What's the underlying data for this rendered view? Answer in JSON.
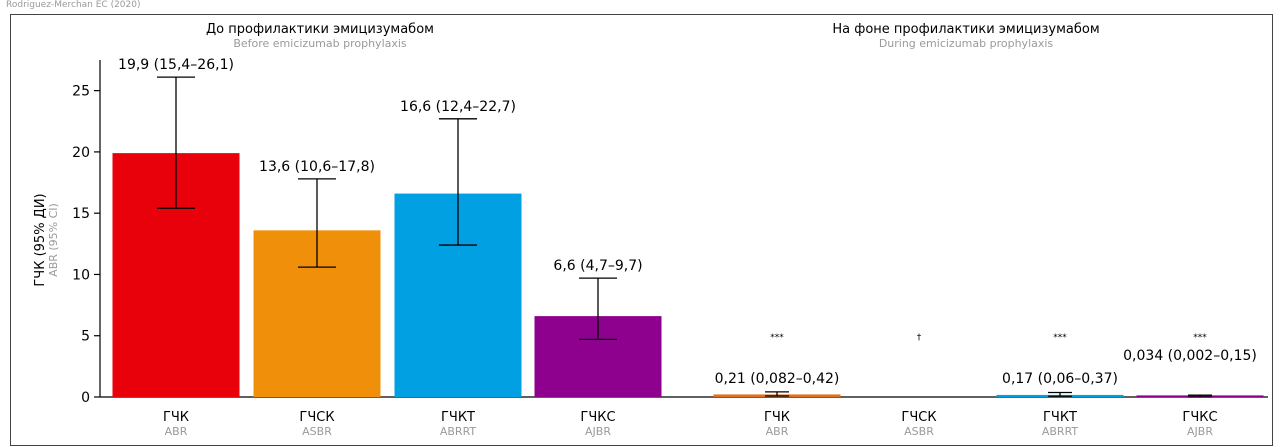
{
  "caption": "Rodriguez-Merchan EC (2020)",
  "chart_data": {
    "type": "bar",
    "ylabel": "ГЧК (95% ДИ)",
    "ylabel_en": "ABR (95% CI)",
    "ylim": [
      0,
      27.5
    ],
    "yticks": [
      0,
      5,
      10,
      15,
      20,
      25
    ],
    "grid": false,
    "panels": [
      {
        "title": "До профилактики эмицизумабом",
        "subtitle": "Before emicizumab prophylaxis",
        "bars": [
          {
            "category": "ГЧК",
            "category_en": "ABR",
            "value": 19.9,
            "ci": [
              15.4,
              26.1
            ],
            "label": "19,9 (15,4–26,1)",
            "color": "#e8000b",
            "sig": ""
          },
          {
            "category": "ГЧСК",
            "category_en": "ASBR",
            "value": 13.6,
            "ci": [
              10.6,
              17.8
            ],
            "label": "13,6 (10,6–17,8)",
            "color": "#f0900a",
            "sig": ""
          },
          {
            "category": "ГЧКТ",
            "category_en": "ABRRT",
            "value": 16.6,
            "ci": [
              12.4,
              22.7
            ],
            "label": "16,6 (12,4–22,7)",
            "color": "#00a0e3",
            "sig": ""
          },
          {
            "category": "ГЧКС",
            "category_en": "AJBR",
            "value": 6.6,
            "ci": [
              4.7,
              9.7
            ],
            "label": "6,6 (4,7–9,7)",
            "color": "#8e008e",
            "sig": ""
          }
        ]
      },
      {
        "title": "На фоне профилактики эмицизумабом",
        "subtitle": "During emicizumab prophylaxis",
        "bars": [
          {
            "category": "ГЧК",
            "category_en": "ABR",
            "value": 0.21,
            "ci": [
              0.082,
              0.42
            ],
            "label": "0,21 (0,082–0,42)",
            "color": "#e07020",
            "sig": "***"
          },
          {
            "category": "ГЧСК",
            "category_en": "ASBR",
            "value": 0,
            "ci": null,
            "label": "",
            "color": "#f0900a",
            "sig": "†"
          },
          {
            "category": "ГЧКТ",
            "category_en": "ABRRT",
            "value": 0.17,
            "ci": [
              0.06,
              0.37
            ],
            "label": "0,17 (0,06–0,37)",
            "color": "#00a0e3",
            "sig": "***"
          },
          {
            "category": "ГЧКС",
            "category_en": "AJBR",
            "value": 0.034,
            "ci": [
              0.002,
              0.15
            ],
            "label": "0,034 (0,002–0,15)",
            "color": "#8e008e",
            "sig": "***"
          }
        ]
      }
    ]
  }
}
